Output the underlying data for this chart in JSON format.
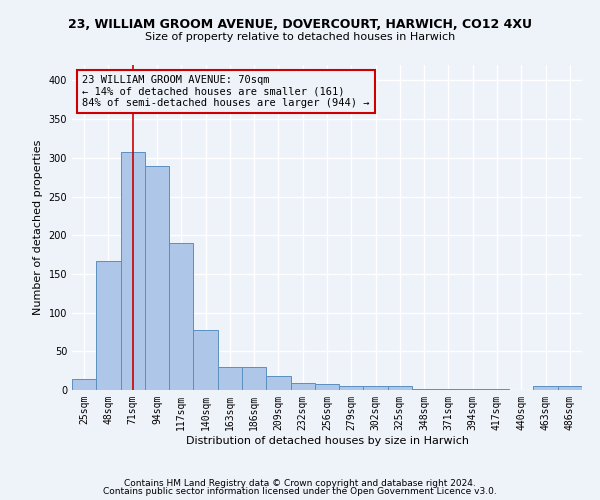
{
  "title": "23, WILLIAM GROOM AVENUE, DOVERCOURT, HARWICH, CO12 4XU",
  "subtitle": "Size of property relative to detached houses in Harwich",
  "xlabel": "Distribution of detached houses by size in Harwich",
  "ylabel": "Number of detached properties",
  "categories": [
    "25sqm",
    "48sqm",
    "71sqm",
    "94sqm",
    "117sqm",
    "140sqm",
    "163sqm",
    "186sqm",
    "209sqm",
    "232sqm",
    "256sqm",
    "279sqm",
    "302sqm",
    "325sqm",
    "348sqm",
    "371sqm",
    "394sqm",
    "417sqm",
    "440sqm",
    "463sqm",
    "486sqm"
  ],
  "values": [
    14,
    167,
    307,
    290,
    190,
    78,
    30,
    30,
    18,
    9,
    8,
    5,
    5,
    5,
    1,
    1,
    1,
    1,
    0,
    5,
    5
  ],
  "bar_color": "#aec6e8",
  "bar_edge_color": "#5a8fc0",
  "marker_bin_index": 2,
  "marker_color": "#cc0000",
  "annotation_text": "23 WILLIAM GROOM AVENUE: 70sqm\n← 14% of detached houses are smaller (161)\n84% of semi-detached houses are larger (944) →",
  "annotation_box_color": "#cc0000",
  "ylim": [
    0,
    420
  ],
  "background_color": "#eef2f9",
  "grid_color": "#ffffff",
  "footer_line1": "Contains HM Land Registry data © Crown copyright and database right 2024.",
  "footer_line2": "Contains public sector information licensed under the Open Government Licence v3.0."
}
